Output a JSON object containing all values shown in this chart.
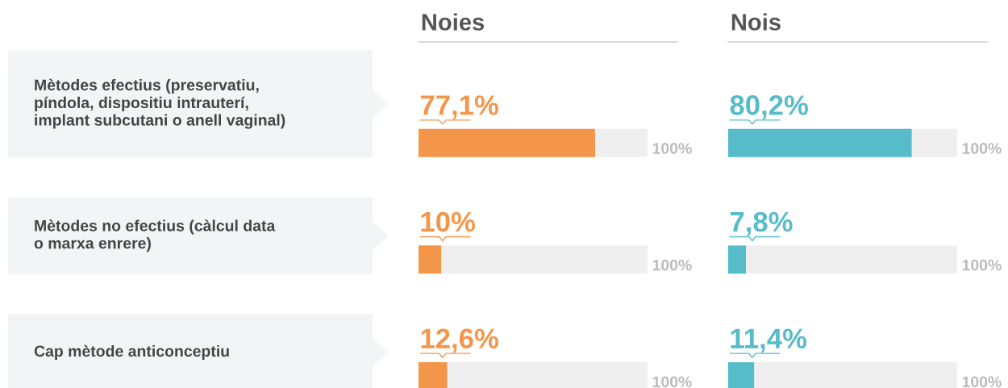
{
  "chart_data": [
    {
      "type": "bar",
      "orientation": "horizontal",
      "title": "Noies",
      "categories": [
        "Mètodes efectius (preservatiu,\npíndola, dispositiu intrauterí,\nimplant subcutani o anell vaginal)",
        "Mètodes no efectius (càlcul data\no marxa enrere)",
        "Cap mètode anticonceptiu"
      ],
      "stacked": true,
      "series": [
        {
          "color": "#f4964a",
          "values": [
            77.1,
            10,
            12.6
          ],
          "value_labels": [
            "77,1%",
            "10%",
            "12,6%"
          ]
        },
        {
          "color": "#efefef",
          "values": [
            22.9,
            90,
            87.4
          ]
        }
      ],
      "xlim": [
        0,
        100
      ],
      "tick_labels": "y",
      "legend": false,
      "annotations": [
        "100%",
        "100%",
        "100%"
      ]
    },
    {
      "type": "bar",
      "orientation": "horizontal",
      "title": "Nois",
      "categories": [
        null,
        null,
        null
      ],
      "stacked": true,
      "series": [
        {
          "color": "#56bcc9",
          "values": [
            80.2,
            7.8,
            11.4
          ],
          "value_labels": [
            "80,2%",
            "7,8%",
            "11,4%"
          ]
        },
        {
          "color": "#efefef",
          "values": [
            19.8,
            92.2,
            88.6
          ]
        }
      ],
      "xlim": [
        0,
        100
      ],
      "tick_labels": false,
      "legend": false,
      "annotations": [
        "100%",
        "100%",
        "100%"
      ]
    }
  ]
}
